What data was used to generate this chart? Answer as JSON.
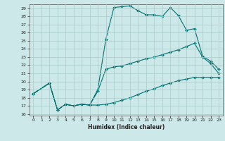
{
  "title": "",
  "xlabel": "Humidex (Indice chaleur)",
  "background_color": "#cce8e8",
  "grid_color": "#aacccc",
  "line_color": "#007070",
  "xlim": [
    -0.5,
    23.5
  ],
  "ylim": [
    15.8,
    29.5
  ],
  "yticks": [
    16,
    17,
    18,
    19,
    20,
    21,
    22,
    23,
    24,
    25,
    26,
    27,
    28,
    29
  ],
  "xticks": [
    0,
    1,
    2,
    3,
    4,
    5,
    6,
    7,
    8,
    9,
    10,
    11,
    12,
    13,
    14,
    15,
    16,
    17,
    18,
    19,
    20,
    21,
    22,
    23
  ],
  "curve1_x": [
    0,
    2,
    3,
    4,
    5,
    6,
    7,
    8,
    9,
    10,
    11,
    12,
    13,
    14,
    15,
    16,
    17,
    18,
    19,
    20,
    21,
    22,
    23
  ],
  "curve1_y": [
    18.5,
    19.8,
    16.5,
    17.2,
    17.0,
    17.2,
    17.1,
    19.0,
    25.2,
    29.1,
    29.2,
    29.3,
    28.7,
    28.2,
    28.2,
    28.0,
    29.1,
    28.1,
    26.3,
    26.5,
    23.1,
    22.5,
    21.5
  ],
  "curve2_x": [
    0,
    2,
    3,
    4,
    5,
    6,
    7,
    8,
    9,
    10,
    11,
    12,
    13,
    14,
    15,
    16,
    17,
    18,
    19,
    20,
    21,
    22,
    23
  ],
  "curve2_y": [
    18.5,
    19.8,
    16.5,
    17.2,
    17.0,
    17.2,
    17.1,
    18.8,
    21.5,
    21.8,
    21.9,
    22.2,
    22.5,
    22.8,
    23.0,
    23.3,
    23.6,
    23.9,
    24.3,
    24.7,
    23.0,
    22.2,
    21.0
  ],
  "curve3_x": [
    0,
    2,
    3,
    4,
    5,
    6,
    7,
    8,
    9,
    10,
    11,
    12,
    13,
    14,
    15,
    16,
    17,
    18,
    19,
    20,
    21,
    22,
    23
  ],
  "curve3_y": [
    18.5,
    19.8,
    16.5,
    17.2,
    17.0,
    17.2,
    17.1,
    17.1,
    17.2,
    17.4,
    17.7,
    18.0,
    18.4,
    18.8,
    19.1,
    19.5,
    19.8,
    20.1,
    20.3,
    20.5,
    20.5,
    20.5,
    20.5
  ]
}
